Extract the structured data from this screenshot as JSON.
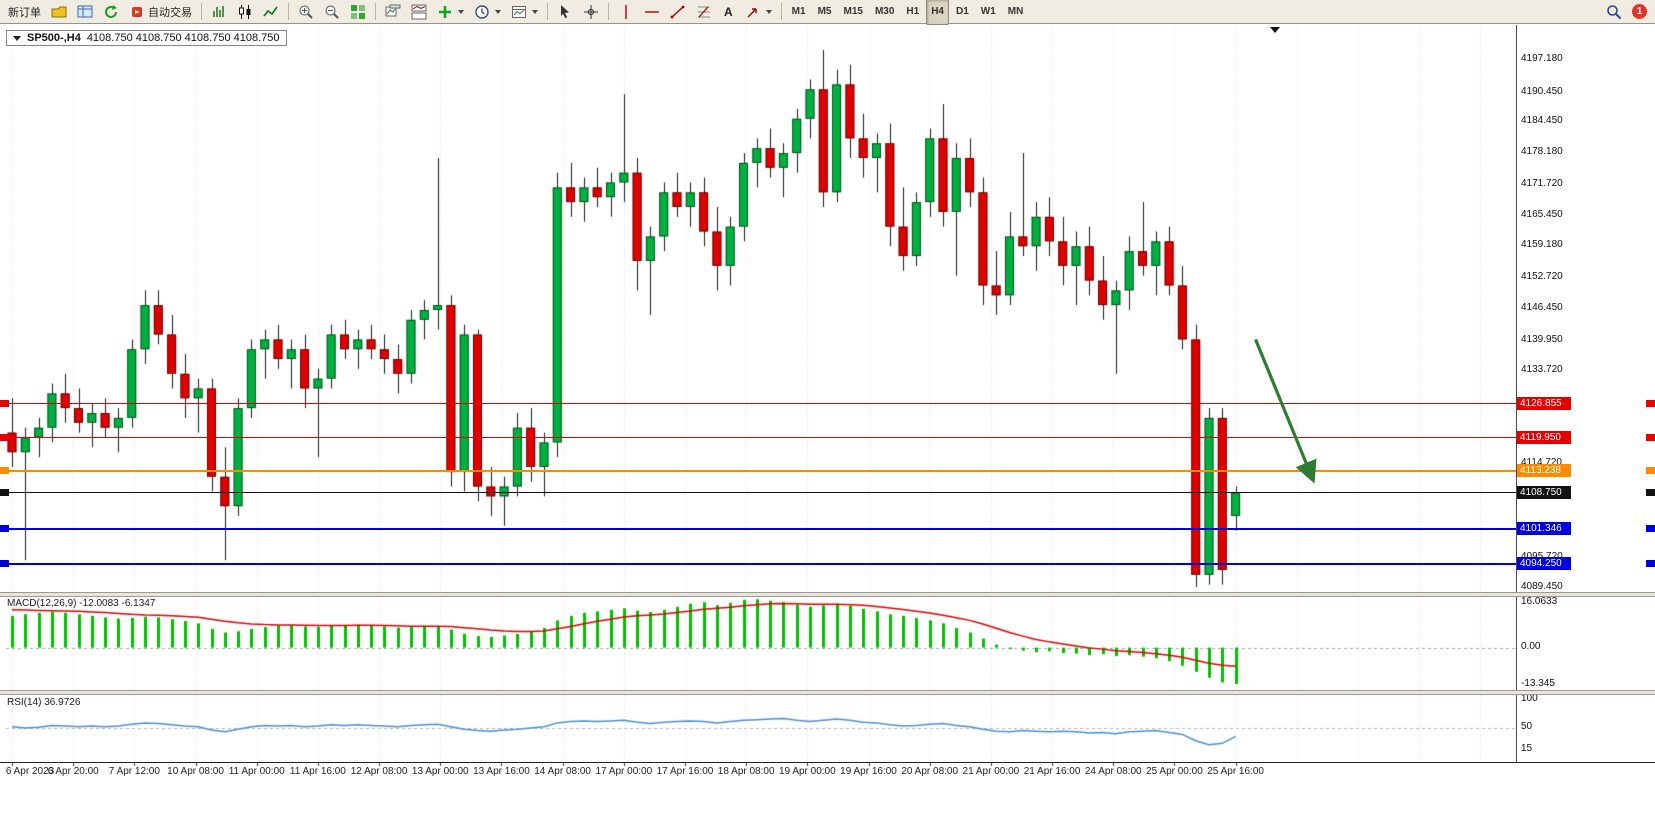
{
  "toolbar": {
    "new_order": "新订单",
    "auto_trading": "自动交易",
    "text_tool": "A",
    "timeframes": [
      "M1",
      "M5",
      "M15",
      "M30",
      "H1",
      "H4",
      "D1",
      "W1",
      "MN"
    ],
    "active_timeframe": "H4",
    "notification_count": "1"
  },
  "chart_header": {
    "symbol": "SP500-,H4",
    "ohlc": "4108.750 4108.750 4108.750 4108.750"
  },
  "price_axis_labels": [
    "4197.180",
    "4190.450",
    "4184.450",
    "4178.180",
    "4171.720",
    "4165.450",
    "4159.180",
    "4152.720",
    "4146.450",
    "4139.950",
    "4133.720",
    "4114.720",
    "4095.720",
    "4089.450"
  ],
  "levels": [
    {
      "price": 4126.855,
      "label": "4126.855",
      "color": "#e80000",
      "weight": 1
    },
    {
      "price": 4119.95,
      "label": "4119.950",
      "color": "#e80000",
      "weight": 1
    },
    {
      "price": 4113.238,
      "label": "4113.238",
      "color": "#ff8a00",
      "weight": 2
    },
    {
      "price": 4108.75,
      "label": "4108.750",
      "color": "#111111",
      "weight": 1
    },
    {
      "price": 4101.346,
      "label": "4101.346",
      "color": "#0000e0",
      "weight": 2
    },
    {
      "price": 4094.25,
      "label": "4094.250",
      "color": "#0000e0",
      "weight": 2
    }
  ],
  "macd_panel": {
    "title": "MACD(12,26,9) -12.0083 -6.1347",
    "scale": [
      "16.0633",
      "0.00",
      "-13.345"
    ]
  },
  "rsi_panel": {
    "title": "RSI(14) 36.9726",
    "scale": [
      "100",
      "50",
      "15"
    ]
  },
  "time_axis": [
    "6 Apr 2023",
    "6 Apr 20:00",
    "7 Apr 12:00",
    "10 Apr 08:00",
    "11 Apr 00:00",
    "11 Apr 16:00",
    "12 Apr 08:00",
    "13 Apr 00:00",
    "13 Apr 16:00",
    "14 Apr 08:00",
    "17 Apr 00:00",
    "17 Apr 16:00",
    "18 Apr 08:00",
    "19 Apr 00:00",
    "19 Apr 16:00",
    "20 Apr 08:00",
    "21 Apr 00:00",
    "21 Apr 16:00",
    "24 Apr 08:00",
    "25 Apr 00:00",
    "25 Apr 16:00"
  ],
  "chart_data": {
    "type": "candlestick",
    "symbol": "SP500-",
    "timeframe": "H4",
    "price_range": [
      4088.5,
      4203.5
    ],
    "candles": [
      [
        4121,
        4128,
        4114,
        4117
      ],
      [
        4117,
        4122,
        4095,
        4120
      ],
      [
        4120,
        4124,
        4116,
        4122
      ],
      [
        4122,
        4131,
        4119,
        4129
      ],
      [
        4129,
        4133,
        4123,
        4126
      ],
      [
        4126,
        4130,
        4121,
        4123
      ],
      [
        4123,
        4127,
        4118,
        4125
      ],
      [
        4125,
        4128,
        4120,
        4122
      ],
      [
        4122,
        4126,
        4117,
        4124
      ],
      [
        4124,
        4140,
        4122,
        4138
      ],
      [
        4138,
        4150,
        4135,
        4147
      ],
      [
        4147,
        4150,
        4139,
        4141
      ],
      [
        4141,
        4145,
        4130,
        4133
      ],
      [
        4133,
        4137,
        4124,
        4128
      ],
      [
        4128,
        4132,
        4121,
        4130
      ],
      [
        4130,
        4132,
        4109,
        4112
      ],
      [
        4112,
        4118,
        4095,
        4106
      ],
      [
        4106,
        4128,
        4104,
        4126
      ],
      [
        4126,
        4140,
        4124,
        4138
      ],
      [
        4138,
        4142,
        4132,
        4140
      ],
      [
        4140,
        4143,
        4134,
        4136
      ],
      [
        4136,
        4140,
        4130,
        4138
      ],
      [
        4138,
        4141,
        4126,
        4130
      ],
      [
        4130,
        4134,
        4116,
        4132
      ],
      [
        4132,
        4143,
        4130,
        4141
      ],
      [
        4141,
        4144,
        4136,
        4138
      ],
      [
        4138,
        4142,
        4134,
        4140
      ],
      [
        4140,
        4143,
        4136,
        4138
      ],
      [
        4138,
        4141,
        4133,
        4136
      ],
      [
        4136,
        4139,
        4129,
        4133
      ],
      [
        4133,
        4146,
        4131,
        4144
      ],
      [
        4144,
        4148,
        4140,
        4146
      ],
      [
        4146,
        4177,
        4142,
        4147
      ],
      [
        4147,
        4149,
        4110,
        4113
      ],
      [
        4113,
        4143,
        4109,
        4141
      ],
      [
        4141,
        4142,
        4107,
        4110
      ],
      [
        4110,
        4114,
        4104,
        4108
      ],
      [
        4108,
        4112,
        4102,
        4110
      ],
      [
        4110,
        4125,
        4108,
        4122
      ],
      [
        4122,
        4126,
        4111,
        4114
      ],
      [
        4114,
        4121,
        4108,
        4119
      ],
      [
        4119,
        4174,
        4116,
        4171
      ],
      [
        4171,
        4176,
        4165,
        4168
      ],
      [
        4168,
        4173,
        4164,
        4171
      ],
      [
        4171,
        4175,
        4167,
        4169
      ],
      [
        4169,
        4174,
        4165,
        4172
      ],
      [
        4172,
        4190,
        4168,
        4174
      ],
      [
        4174,
        4177,
        4150,
        4156
      ],
      [
        4156,
        4163,
        4145,
        4161
      ],
      [
        4161,
        4172,
        4158,
        4170
      ],
      [
        4170,
        4174,
        4165,
        4167
      ],
      [
        4167,
        4172,
        4163,
        4170
      ],
      [
        4170,
        4173,
        4159,
        4162
      ],
      [
        4162,
        4167,
        4150,
        4155
      ],
      [
        4155,
        4165,
        4151,
        4163
      ],
      [
        4163,
        4178,
        4160,
        4176
      ],
      [
        4176,
        4181,
        4171,
        4179
      ],
      [
        4179,
        4183,
        4173,
        4175
      ],
      [
        4175,
        4180,
        4169,
        4178
      ],
      [
        4178,
        4187,
        4174,
        4185
      ],
      [
        4185,
        4193,
        4181,
        4191
      ],
      [
        4191,
        4199,
        4167,
        4170
      ],
      [
        4170,
        4195,
        4168,
        4192
      ],
      [
        4192,
        4196,
        4177,
        4181
      ],
      [
        4181,
        4186,
        4173,
        4177
      ],
      [
        4177,
        4182,
        4170,
        4180
      ],
      [
        4180,
        4184,
        4159,
        4163
      ],
      [
        4163,
        4171,
        4154,
        4157
      ],
      [
        4157,
        4170,
        4155,
        4168
      ],
      [
        4168,
        4183,
        4165,
        4181
      ],
      [
        4181,
        4188,
        4163,
        4166
      ],
      [
        4166,
        4180,
        4153,
        4177
      ],
      [
        4177,
        4181,
        4167,
        4170
      ],
      [
        4170,
        4173,
        4147,
        4151
      ],
      [
        4151,
        4158,
        4145,
        4149
      ],
      [
        4149,
        4166,
        4147,
        4161
      ],
      [
        4161,
        4178,
        4157,
        4159
      ],
      [
        4159,
        4168,
        4154,
        4165
      ],
      [
        4165,
        4169,
        4157,
        4160
      ],
      [
        4160,
        4165,
        4151,
        4155
      ],
      [
        4155,
        4162,
        4147,
        4159
      ],
      [
        4159,
        4163,
        4149,
        4152
      ],
      [
        4152,
        4157,
        4144,
        4147
      ],
      [
        4147,
        4152,
        4133,
        4150
      ],
      [
        4150,
        4161,
        4146,
        4158
      ],
      [
        4158,
        4168,
        4153,
        4155
      ],
      [
        4155,
        4162,
        4149,
        4160
      ],
      [
        4160,
        4163,
        4149,
        4151
      ],
      [
        4151,
        4155,
        4138,
        4140
      ],
      [
        4140,
        4143,
        4089.5,
        4092
      ],
      [
        4092,
        4126,
        4090,
        4124
      ],
      [
        4124,
        4126,
        4090,
        4093
      ],
      [
        4104,
        4110,
        4101,
        4108.75
      ]
    ],
    "macd": {
      "range": [
        -13.345,
        16.0633
      ],
      "histogram": [
        10.5,
        11.0,
        11.5,
        11.8,
        11.5,
        11.0,
        10.5,
        10.0,
        9.6,
        9.8,
        10.2,
        10.0,
        9.4,
        8.8,
        8.0,
        6.2,
        5.0,
        5.4,
        6.2,
        6.8,
        7.2,
        7.4,
        7.0,
        6.8,
        7.2,
        7.5,
        7.6,
        7.4,
        7.0,
        6.6,
        6.9,
        7.2,
        7.0,
        6.0,
        4.6,
        3.8,
        3.5,
        4.0,
        4.5,
        5.2,
        6.5,
        9.0,
        10.5,
        11.5,
        12.0,
        12.5,
        13.0,
        12.2,
        11.8,
        12.5,
        13.5,
        14.5,
        15.0,
        14.0,
        14.8,
        15.8,
        16.0,
        15.5,
        15.0,
        14.2,
        13.5,
        14.0,
        14.5,
        13.8,
        12.8,
        12.0,
        11.0,
        10.5,
        9.8,
        9.0,
        8.0,
        6.5,
        5.0,
        3.0,
        1.0,
        -0.5,
        -1.0,
        -1.5,
        -1.2,
        -1.8,
        -2.0,
        -2.5,
        -2.2,
        -2.8,
        -2.5,
        -3.0,
        -3.5,
        -4.5,
        -6.0,
        -8.0,
        -10.0,
        -11.5,
        -12.0083
      ],
      "signal": [
        12.5,
        12.4,
        12.3,
        12.2,
        12.1,
        12.0,
        11.8,
        11.6,
        11.3,
        11.0,
        10.8,
        10.7,
        10.5,
        10.3,
        10.0,
        9.4,
        8.7,
        8.2,
        7.8,
        7.6,
        7.5,
        7.5,
        7.4,
        7.3,
        7.3,
        7.3,
        7.4,
        7.4,
        7.3,
        7.2,
        7.1,
        7.1,
        7.1,
        7.0,
        6.6,
        6.2,
        5.8,
        5.5,
        5.3,
        5.3,
        5.5,
        6.2,
        7.0,
        7.9,
        8.7,
        9.4,
        10.1,
        10.5,
        10.8,
        11.1,
        11.6,
        12.1,
        12.7,
        13.0,
        13.3,
        13.8,
        14.2,
        14.5,
        14.6,
        14.5,
        14.3,
        14.3,
        14.3,
        14.2,
        14.0,
        13.6,
        13.1,
        12.6,
        12.0,
        11.4,
        10.7,
        9.9,
        9.0,
        7.8,
        6.4,
        5.0,
        3.8,
        2.7,
        1.9,
        1.2,
        0.5,
        -0.1,
        -0.5,
        -1.0,
        -1.3,
        -1.6,
        -2.0,
        -2.5,
        -3.2,
        -4.2,
        -5.2,
        -5.8,
        -6.1347
      ]
    },
    "rsi": {
      "range": [
        0,
        100
      ],
      "level": 50,
      "values": [
        52,
        50,
        51,
        54,
        53,
        52,
        53,
        52,
        53,
        56,
        58,
        57,
        55,
        53,
        52,
        47,
        44,
        48,
        52,
        54,
        53,
        54,
        52,
        53,
        55,
        54,
        55,
        54,
        53,
        52,
        54,
        55,
        56,
        52,
        48,
        46,
        45,
        47,
        48,
        50,
        52,
        58,
        60,
        61,
        60,
        61,
        62,
        59,
        57,
        59,
        60,
        61,
        60,
        58,
        60,
        62,
        63,
        64,
        65,
        62,
        60,
        62,
        64,
        62,
        59,
        58,
        55,
        53,
        54,
        56,
        57,
        54,
        52,
        48,
        45,
        44,
        46,
        45,
        44,
        45,
        44,
        42,
        43,
        41,
        44,
        45,
        46,
        43,
        40,
        30,
        24,
        26,
        36.97
      ]
    },
    "arrow": {
      "from_bar": 93.5,
      "from_price": 4140,
      "to_bar": 97.8,
      "to_price": 4111.5
    },
    "colors": {
      "bull": "#00b140",
      "bear": "#e00000",
      "wick": "#1a1a1a",
      "macd_hist": "#00c000",
      "macd_signal": "#e00000",
      "rsi_line": "#4a90d2",
      "arrow": "#2e7d32",
      "grid": "#dcdcdc"
    }
  }
}
